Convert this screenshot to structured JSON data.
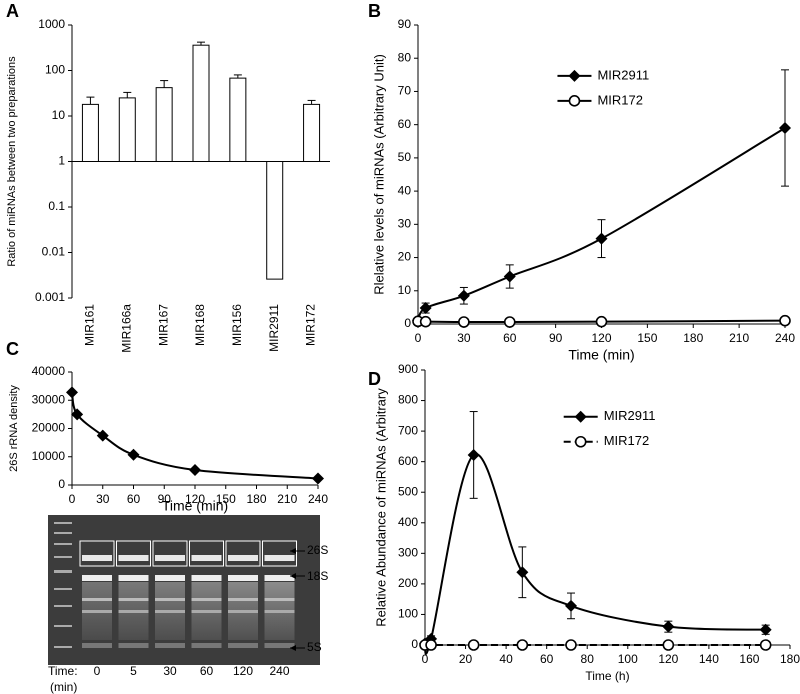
{
  "chart_data": [
    {
      "panel": "A",
      "type": "bar",
      "log_scale": true,
      "color": "#ffffff",
      "edge_color": "#000000",
      "categories": [
        "MIR161",
        "MIR166a",
        "MIR167",
        "MIR168",
        "MIR156",
        "MIR2911",
        "MIR172"
      ],
      "values": [
        18,
        25,
        42,
        360,
        68,
        0.0026,
        18
      ],
      "errors": [
        8,
        8,
        18,
        60,
        12,
        0.0007,
        4
      ],
      "ylim": [
        0.001,
        1000
      ],
      "yticks": [
        0.001,
        0.01,
        0.1,
        1,
        10,
        100,
        1000
      ],
      "ylabel": "Ratio of miRNAs between two preparations"
    },
    {
      "panel": "B",
      "type": "line",
      "smooth": true,
      "legend": "upper center",
      "x": [
        0,
        5,
        30,
        60,
        120,
        240
      ],
      "series": [
        {
          "name": "MIR2911",
          "color": "#000000",
          "marker": "diamond",
          "values": [
            1,
            4.8,
            8.5,
            14.3,
            25.7,
            59
          ],
          "errors": [
            0.5,
            1.5,
            2.5,
            3.5,
            5.7,
            17.5
          ]
        },
        {
          "name": "MIR172",
          "color": "#000000",
          "marker": "circle-open",
          "values": [
            0.8,
            0.7,
            0.6,
            0.6,
            0.7,
            1.0
          ]
        }
      ],
      "xlim": [
        0,
        240
      ],
      "xticks": [
        0,
        30,
        60,
        90,
        120,
        150,
        180,
        210,
        240
      ],
      "ylim": [
        0,
        90
      ],
      "yticks": [
        0,
        10,
        20,
        30,
        40,
        50,
        60,
        70,
        80,
        90
      ],
      "xlabel": "Time (min)",
      "ylabel": "Rlelative levels of miRNAs (Arbitrary Unit)"
    },
    {
      "panel": "C",
      "type": "line",
      "smooth": true,
      "x": [
        0,
        5,
        30,
        60,
        120,
        240
      ],
      "series": [
        {
          "color": "#000000",
          "marker": "diamond",
          "values": [
            32800,
            25000,
            17500,
            10700,
            5300,
            2300
          ]
        }
      ],
      "xlim": [
        0,
        240
      ],
      "xticks": [
        0,
        30,
        60,
        90,
        120,
        150,
        180,
        210,
        240
      ],
      "ylim": [
        0,
        40000
      ],
      "yticks": [
        0,
        10000,
        20000,
        30000,
        40000
      ],
      "xlabel": "Time (min)",
      "ylabel": "26S rRNA density"
    },
    {
      "panel": "D",
      "type": "line",
      "smooth": true,
      "legend": "upper center",
      "x": [
        0,
        3,
        24,
        48,
        72,
        120,
        168
      ],
      "series": [
        {
          "name": "MIR2911",
          "color": "#000000",
          "marker": "diamond",
          "values": [
            5,
            20,
            622,
            238,
            128,
            60,
            50
          ],
          "errors": [
            3,
            10,
            142,
            83,
            42,
            18,
            15
          ]
        },
        {
          "name": "MIR172",
          "color": "#000000",
          "marker": "circle-open",
          "line_style": "dashed",
          "values": [
            0,
            0,
            0,
            0,
            0,
            0,
            0
          ]
        }
      ],
      "xlim": [
        0,
        180
      ],
      "xticks": [
        0,
        20,
        40,
        60,
        80,
        100,
        120,
        140,
        160,
        180
      ],
      "ylim": [
        0,
        900
      ],
      "yticks": [
        0,
        100,
        200,
        300,
        400,
        500,
        600,
        700,
        800,
        900
      ],
      "xlabel": "Time (h)",
      "ylabel": "Relative Abundance of miRNAs (Arbitrary"
    }
  ],
  "gel": {
    "bands": [
      "26S",
      "18S",
      "5S"
    ],
    "time_label": "Time:",
    "unit_label": "(min)",
    "lanes": [
      0,
      5,
      30,
      60,
      120,
      240
    ]
  }
}
